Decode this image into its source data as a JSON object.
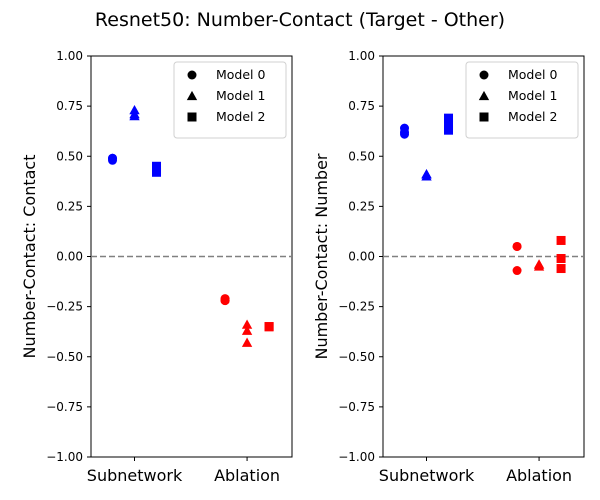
{
  "title": "Resnet50: Number-Contact (Target - Other)",
  "colors": {
    "subnetwork": "#0000ff",
    "ablation": "#ff0000",
    "zero_line": "#808080"
  },
  "chart_data": [
    {
      "type": "scatter",
      "ylabel": "Number-Contact: Contact",
      "categories": [
        "Subnetwork",
        "Ablation"
      ],
      "ylim": [
        -1.0,
        1.0
      ],
      "yticks": [
        "1.00",
        "0.75",
        "0.50",
        "0.25",
        "0.00",
        "−0.25",
        "−0.50",
        "−0.75",
        "−1.00"
      ],
      "ytick_values": [
        1.0,
        0.75,
        0.5,
        0.25,
        0.0,
        -0.25,
        -0.5,
        -0.75,
        -1.0
      ],
      "reference_line": 0.0,
      "legend": {
        "placement": "top-right",
        "entries": [
          "Model 0",
          "Model 1",
          "Model 2"
        ]
      },
      "series": [
        {
          "name": "Model 0",
          "marker": "circle",
          "subnetwork": [
            0.49,
            0.48,
            0.49
          ],
          "ablation": [
            -0.21,
            -0.22,
            -0.22
          ]
        },
        {
          "name": "Model 1",
          "marker": "triangle",
          "subnetwork": [
            0.73,
            0.7,
            0.71
          ],
          "ablation": [
            -0.34,
            -0.37,
            -0.43
          ]
        },
        {
          "name": "Model 2",
          "marker": "square",
          "subnetwork": [
            0.45,
            0.42,
            0.43
          ],
          "ablation": [
            -0.35,
            -0.35,
            -0.35
          ]
        }
      ]
    },
    {
      "type": "scatter",
      "ylabel": "Number-Contact: Number",
      "categories": [
        "Subnetwork",
        "Ablation"
      ],
      "ylim": [
        -1.0,
        1.0
      ],
      "yticks": [
        "1.00",
        "0.75",
        "0.50",
        "0.25",
        "0.00",
        "−0.25",
        "−0.50",
        "−0.75",
        "−1.00"
      ],
      "ytick_values": [
        1.0,
        0.75,
        0.5,
        0.25,
        0.0,
        -0.25,
        -0.5,
        -0.75,
        -1.0
      ],
      "reference_line": 0.0,
      "legend": {
        "placement": "top-right",
        "entries": [
          "Model 0",
          "Model 1",
          "Model 2"
        ]
      },
      "series": [
        {
          "name": "Model 0",
          "marker": "circle",
          "subnetwork": [
            0.64,
            0.61,
            0.62
          ],
          "ablation": [
            0.05,
            -0.07,
            0.05
          ]
        },
        {
          "name": "Model 1",
          "marker": "triangle",
          "subnetwork": [
            0.41,
            0.4,
            0.41
          ],
          "ablation": [
            -0.04,
            -0.05,
            -0.04
          ]
        },
        {
          "name": "Model 2",
          "marker": "square",
          "subnetwork": [
            0.69,
            0.63,
            0.66
          ],
          "ablation": [
            0.08,
            -0.01,
            -0.06
          ]
        }
      ]
    }
  ]
}
